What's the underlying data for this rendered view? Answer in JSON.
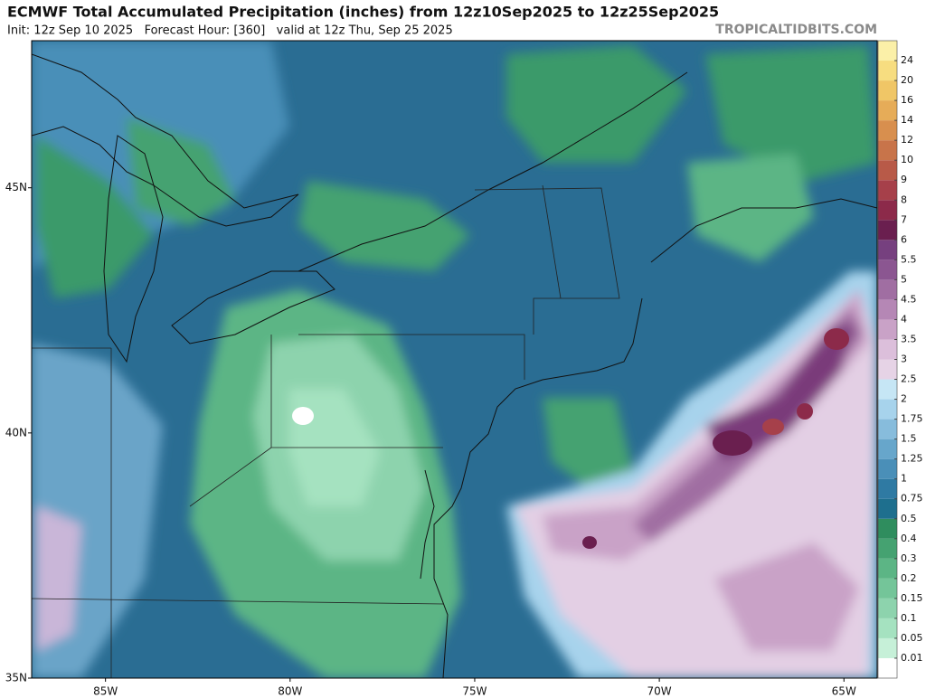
{
  "header": {
    "title": "ECMWF Total Accumulated Precipitation (inches) from 12z10Sep2025 to 12z25Sep2025",
    "subtitle": "Init: 12z Sep 10 2025   Forecast Hour: [360]   valid at 12z Thu, Sep 25 2025",
    "watermark": "TROPICALTIDBITS.COM"
  },
  "map": {
    "lonlim": [
      -87,
      -64.1
    ],
    "latlim": [
      35,
      48
    ],
    "lonticks": [
      {
        "value": -85,
        "label": "85W"
      },
      {
        "value": -80,
        "label": "80W"
      },
      {
        "value": -75,
        "label": "75W"
      },
      {
        "value": -70,
        "label": "70W"
      },
      {
        "value": -65,
        "label": "65W"
      }
    ],
    "latticks": [
      {
        "value": 45,
        "label": "45N"
      },
      {
        "value": 40,
        "label": "40N"
      },
      {
        "value": 35,
        "label": "35N"
      }
    ]
  },
  "colorbar": {
    "under_color": "#ffffff",
    "levels": [
      0.01,
      0.05,
      0.1,
      0.15,
      0.2,
      0.3,
      0.4,
      0.5,
      0.75,
      1,
      1.25,
      1.5,
      1.75,
      2,
      2.5,
      3,
      3.5,
      4,
      4.5,
      5,
      5.5,
      6,
      7,
      8,
      9,
      10,
      12,
      14,
      16,
      20,
      24
    ],
    "colors": [
      "#c6f0d8",
      "#a5e2c0",
      "#8dd3ad",
      "#74c599",
      "#5cb585",
      "#45a271",
      "#2f8d5e",
      "#1e6f8e",
      "#2f7aa3",
      "#4a8fb8",
      "#67a6cb",
      "#87bcdc",
      "#a7d3ec",
      "#c6e6f5",
      "#e6d3e6",
      "#dcbfdb",
      "#c9a2c7",
      "#b587b5",
      "#a06ea2",
      "#8b5691",
      "#76407f",
      "#6a1f4f",
      "#8c2a4a",
      "#a6404a",
      "#b85a48",
      "#c8744a",
      "#d88f4e",
      "#e6ac58",
      "#f0c666",
      "#f7dd80",
      "#fbf0a8"
    ]
  }
}
